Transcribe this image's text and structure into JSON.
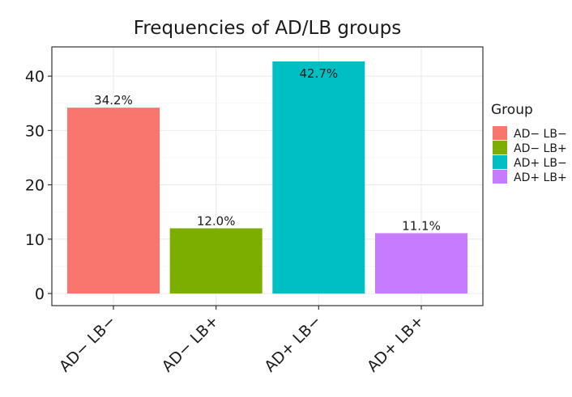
{
  "chart_data": {
    "type": "bar",
    "title": "Frequencies of AD/LB groups",
    "xlabel": "",
    "ylabel": "",
    "categories": [
      "AD− LB−",
      "AD− LB+",
      "AD+ LB−",
      "AD+ LB+"
    ],
    "values": [
      34.2,
      12.0,
      42.7,
      11.1
    ],
    "data_labels": [
      "34.2%",
      "12.0%",
      "42.7%",
      "11.1%"
    ],
    "colors": [
      "#F8766D",
      "#7CAE00",
      "#00BFC4",
      "#C77CFF"
    ],
    "ylim": [
      0,
      45
    ],
    "yticks": [
      0,
      10,
      20,
      30,
      40
    ],
    "grid": true,
    "legend": {
      "title": "Group",
      "position": "right",
      "entries": [
        "AD− LB−",
        "AD− LB+",
        "AD+ LB−",
        "AD+ LB+"
      ]
    }
  }
}
